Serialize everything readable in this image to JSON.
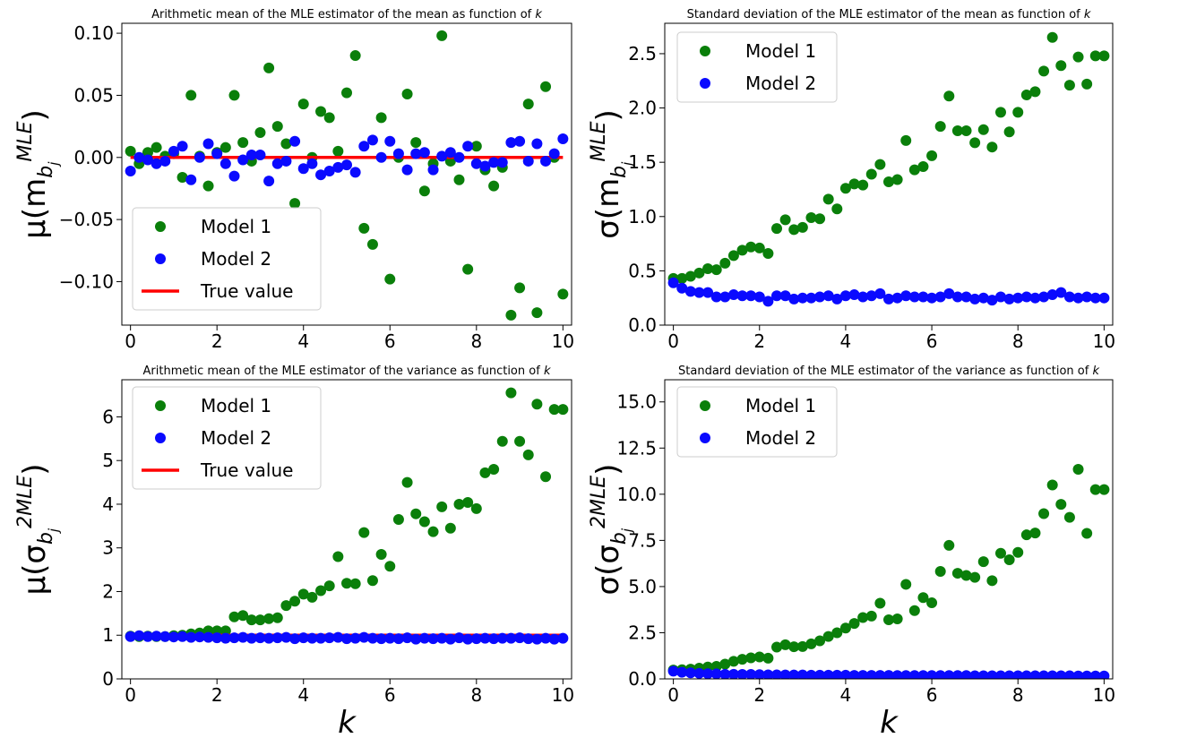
{
  "colors": {
    "model1": "#0a7f0a",
    "model2": "#0a0aff",
    "true_value": "#ff0000"
  },
  "chart_data": [
    {
      "type": "scatter",
      "title": "Arithmetic mean of the MLE estimator of the mean as function of",
      "title_var": "k",
      "ylabel_prefix": "μ(m",
      "ylabel_sub": "b",
      "ylabel_subsub": "j",
      "ylabel_sup": "MLE",
      "ylabel_suffix": ")",
      "xlabel": "",
      "xlim": [
        -0.2,
        10.2
      ],
      "ylim": [
        -0.135,
        0.108
      ],
      "xticks": [
        0,
        2,
        4,
        6,
        8,
        10
      ],
      "xtick_labels": [
        "0",
        "2",
        "4",
        "6",
        "8",
        "10"
      ],
      "yticks": [
        -0.1,
        -0.05,
        0.0,
        0.05,
        0.1
      ],
      "ytick_labels": [
        "−0.10",
        "−0.05",
        "0.00",
        "0.05",
        "0.10"
      ],
      "legend": {
        "position": "lower-left",
        "entries": [
          "Model 1",
          "Model 2",
          "True value"
        ]
      },
      "x": [
        0,
        0.2,
        0.4,
        0.6,
        0.8,
        1.0,
        1.2,
        1.4,
        1.6,
        1.8,
        2.0,
        2.2,
        2.4,
        2.6,
        2.8,
        3.0,
        3.2,
        3.4,
        3.6,
        3.8,
        4.0,
        4.2,
        4.4,
        4.6,
        4.8,
        5.0,
        5.2,
        5.4,
        5.6,
        5.8,
        6.0,
        6.2,
        6.4,
        6.6,
        6.8,
        7.0,
        7.2,
        7.4,
        7.6,
        7.8,
        8.0,
        8.2,
        8.4,
        8.6,
        8.8,
        9.0,
        9.2,
        9.4,
        9.6,
        9.8,
        10.0
      ],
      "series": [
        {
          "name": "Model 1",
          "marker": "dot",
          "values": [
            0.005,
            -0.005,
            0.004,
            0.008,
            0.001,
            0.003,
            -0.016,
            0.05,
            0.001,
            -0.023,
            0.004,
            0.008,
            0.05,
            0.012,
            -0.003,
            0.02,
            0.072,
            0.025,
            0.011,
            -0.037,
            0.043,
            0.0,
            0.037,
            0.032,
            0.005,
            0.052,
            0.082,
            -0.057,
            -0.07,
            0.032,
            -0.098,
            0.0,
            0.051,
            0.012,
            -0.027,
            -0.005,
            0.098,
            -0.003,
            -0.018,
            -0.09,
            0.009,
            -0.01,
            -0.023,
            -0.008,
            -0.127,
            -0.105,
            0.043,
            -0.125,
            0.057,
            0.0,
            -0.11
          ]
        },
        {
          "name": "Model 2",
          "marker": "dot",
          "values": [
            -0.011,
            0.0,
            -0.002,
            -0.005,
            -0.003,
            0.005,
            0.009,
            -0.018,
            0.0,
            0.011,
            0.003,
            -0.005,
            -0.015,
            -0.002,
            0.002,
            0.002,
            -0.019,
            -0.005,
            -0.003,
            0.013,
            -0.009,
            -0.005,
            -0.014,
            -0.011,
            -0.008,
            -0.006,
            -0.012,
            0.009,
            0.014,
            0.0,
            0.013,
            0.003,
            -0.01,
            0.003,
            0.004,
            -0.01,
            0.001,
            0.004,
            0.0,
            0.009,
            -0.005,
            -0.007,
            -0.004,
            -0.004,
            0.012,
            0.013,
            -0.003,
            0.011,
            -0.003,
            0.003,
            0.015
          ]
        },
        {
          "name": "True value",
          "marker": "line",
          "values": [
            0,
            0
          ]
        }
      ]
    },
    {
      "type": "scatter",
      "title": "Standard deviation of the MLE estimator of the mean as function of",
      "title_var": "k",
      "ylabel_prefix": "σ(m",
      "ylabel_sub": "b",
      "ylabel_subsub": "j",
      "ylabel_sup": "MLE",
      "ylabel_suffix": ")",
      "xlabel": "",
      "xlim": [
        -0.2,
        10.2
      ],
      "ylim": [
        0,
        2.78
      ],
      "xticks": [
        0,
        2,
        4,
        6,
        8,
        10
      ],
      "xtick_labels": [
        "0",
        "2",
        "4",
        "6",
        "8",
        "10"
      ],
      "yticks": [
        0.0,
        0.5,
        1.0,
        1.5,
        2.0,
        2.5
      ],
      "ytick_labels": [
        "0.0",
        "0.5",
        "1.0",
        "1.5",
        "2.0",
        "2.5"
      ],
      "legend": {
        "position": "upper-left",
        "entries": [
          "Model 1",
          "Model 2"
        ]
      },
      "x": [
        0,
        0.2,
        0.4,
        0.6,
        0.8,
        1.0,
        1.2,
        1.4,
        1.6,
        1.8,
        2.0,
        2.2,
        2.4,
        2.6,
        2.8,
        3.0,
        3.2,
        3.4,
        3.6,
        3.8,
        4.0,
        4.2,
        4.4,
        4.6,
        4.8,
        5.0,
        5.2,
        5.4,
        5.6,
        5.8,
        6.0,
        6.2,
        6.4,
        6.6,
        6.8,
        7.0,
        7.2,
        7.4,
        7.6,
        7.8,
        8.0,
        8.2,
        8.4,
        8.6,
        8.8,
        9.0,
        9.2,
        9.4,
        9.6,
        9.8,
        10.0
      ],
      "series": [
        {
          "name": "Model 1",
          "marker": "dot",
          "values": [
            0.43,
            0.43,
            0.45,
            0.48,
            0.52,
            0.51,
            0.57,
            0.64,
            0.69,
            0.72,
            0.71,
            0.66,
            0.89,
            0.97,
            0.88,
            0.9,
            0.99,
            0.98,
            1.16,
            1.07,
            1.26,
            1.3,
            1.29,
            1.39,
            1.48,
            1.32,
            1.34,
            1.7,
            1.43,
            1.46,
            1.56,
            1.83,
            2.11,
            1.79,
            1.79,
            1.68,
            1.8,
            1.64,
            1.96,
            1.78,
            1.96,
            2.12,
            2.15,
            2.34,
            2.65,
            2.39,
            2.21,
            2.47,
            2.22,
            2.48,
            2.48
          ]
        },
        {
          "name": "Model 2",
          "marker": "dot",
          "values": [
            0.39,
            0.34,
            0.31,
            0.3,
            0.3,
            0.26,
            0.26,
            0.28,
            0.27,
            0.27,
            0.26,
            0.22,
            0.27,
            0.27,
            0.24,
            0.25,
            0.25,
            0.26,
            0.27,
            0.24,
            0.27,
            0.28,
            0.26,
            0.27,
            0.29,
            0.24,
            0.25,
            0.27,
            0.26,
            0.26,
            0.25,
            0.26,
            0.29,
            0.26,
            0.26,
            0.24,
            0.25,
            0.23,
            0.26,
            0.24,
            0.25,
            0.26,
            0.25,
            0.26,
            0.28,
            0.3,
            0.26,
            0.25,
            0.26,
            0.25,
            0.25
          ]
        }
      ]
    },
    {
      "type": "scatter",
      "title": "Arithmetic mean of the MLE estimator of the variance as function of",
      "title_var": "k",
      "ylabel_prefix": "μ(σ",
      "ylabel_sub": "b",
      "ylabel_subsub": "j",
      "ylabel_sup": "2MLE",
      "ylabel_suffix": ")",
      "xlabel": "k",
      "xlim": [
        -0.2,
        10.2
      ],
      "ylim": [
        0,
        6.85
      ],
      "xticks": [
        0,
        2,
        4,
        6,
        8,
        10
      ],
      "xtick_labels": [
        "0",
        "2",
        "4",
        "6",
        "8",
        "10"
      ],
      "yticks": [
        0,
        1,
        2,
        3,
        4,
        5,
        6
      ],
      "ytick_labels": [
        "0",
        "1",
        "2",
        "3",
        "4",
        "5",
        "6"
      ],
      "legend": {
        "position": "upper-left",
        "entries": [
          "Model 1",
          "Model 2",
          "True value"
        ]
      },
      "x": [
        0,
        0.2,
        0.4,
        0.6,
        0.8,
        1.0,
        1.2,
        1.4,
        1.6,
        1.8,
        2.0,
        2.2,
        2.4,
        2.6,
        2.8,
        3.0,
        3.2,
        3.4,
        3.6,
        3.8,
        4.0,
        4.2,
        4.4,
        4.6,
        4.8,
        5.0,
        5.2,
        5.4,
        5.6,
        5.8,
        6.0,
        6.2,
        6.4,
        6.6,
        6.8,
        7.0,
        7.2,
        7.4,
        7.6,
        7.8,
        8.0,
        8.2,
        8.4,
        8.6,
        8.8,
        9.0,
        9.2,
        9.4,
        9.6,
        9.8,
        10.0
      ],
      "series": [
        {
          "name": "Model 1",
          "marker": "dot",
          "values": [
            0.98,
            0.97,
            0.98,
            0.97,
            0.97,
            0.99,
            1.0,
            1.03,
            1.05,
            1.1,
            1.1,
            1.1,
            1.42,
            1.45,
            1.35,
            1.35,
            1.38,
            1.4,
            1.68,
            1.78,
            1.94,
            1.87,
            2.02,
            2.13,
            2.8,
            2.19,
            2.18,
            3.35,
            2.25,
            2.85,
            2.58,
            3.65,
            4.5,
            3.78,
            3.6,
            3.37,
            3.94,
            3.45,
            4.0,
            4.04,
            3.9,
            4.72,
            4.8,
            5.44,
            6.55,
            5.44,
            5.13,
            6.29,
            4.63,
            6.17,
            6.17
          ]
        },
        {
          "name": "Model 2",
          "marker": "dot",
          "values": [
            0.97,
            0.99,
            0.97,
            0.98,
            0.97,
            0.96,
            0.97,
            0.95,
            0.96,
            0.95,
            0.94,
            0.93,
            0.94,
            0.95,
            0.93,
            0.94,
            0.93,
            0.94,
            0.95,
            0.92,
            0.94,
            0.93,
            0.93,
            0.94,
            0.95,
            0.92,
            0.93,
            0.95,
            0.93,
            0.92,
            0.93,
            0.92,
            0.94,
            0.91,
            0.93,
            0.92,
            0.93,
            0.91,
            0.94,
            0.91,
            0.92,
            0.93,
            0.92,
            0.93,
            0.93,
            0.94,
            0.92,
            0.91,
            0.93,
            0.91,
            0.93
          ]
        },
        {
          "name": "True value",
          "marker": "line",
          "values": [
            1,
            1
          ]
        }
      ]
    },
    {
      "type": "scatter",
      "title": "Standard deviation of the MLE estimator of the variance as function of",
      "title_var": "k",
      "ylabel_prefix": "σ(σ",
      "ylabel_sub": "b",
      "ylabel_subsub": "j",
      "ylabel_sup": "2MLE",
      "ylabel_suffix": ")",
      "xlabel": "k",
      "xlim": [
        -0.2,
        10.2
      ],
      "ylim": [
        0,
        16.2
      ],
      "xticks": [
        0,
        2,
        4,
        6,
        8,
        10
      ],
      "xtick_labels": [
        "0",
        "2",
        "4",
        "6",
        "8",
        "10"
      ],
      "yticks": [
        0.0,
        2.5,
        5.0,
        7.5,
        10.0,
        12.5,
        15.0
      ],
      "ytick_labels": [
        "0.0",
        "2.5",
        "5.0",
        "7.5",
        "10.0",
        "12.5",
        "15.0"
      ],
      "legend": {
        "position": "upper-left",
        "entries": [
          "Model 1",
          "Model 2"
        ]
      },
      "x": [
        0,
        0.2,
        0.4,
        0.6,
        0.8,
        1.0,
        1.2,
        1.4,
        1.6,
        1.8,
        2.0,
        2.2,
        2.4,
        2.6,
        2.8,
        3.0,
        3.2,
        3.4,
        3.6,
        3.8,
        4.0,
        4.2,
        4.4,
        4.6,
        4.8,
        5.0,
        5.2,
        5.4,
        5.6,
        5.8,
        6.0,
        6.2,
        6.4,
        6.6,
        6.8,
        7.0,
        7.2,
        7.4,
        7.6,
        7.8,
        8.0,
        8.2,
        8.4,
        8.6,
        8.8,
        9.0,
        9.2,
        9.4,
        9.6,
        9.8,
        10.0
      ],
      "series": [
        {
          "name": "Model 1",
          "marker": "dot",
          "values": [
            0.48,
            0.5,
            0.53,
            0.58,
            0.64,
            0.68,
            0.8,
            0.95,
            1.06,
            1.14,
            1.19,
            1.12,
            1.72,
            1.85,
            1.74,
            1.75,
            1.9,
            2.06,
            2.3,
            2.5,
            2.75,
            3.0,
            3.32,
            3.4,
            4.1,
            3.2,
            3.25,
            5.12,
            3.7,
            4.4,
            4.12,
            5.82,
            7.23,
            5.72,
            5.6,
            5.5,
            6.35,
            5.32,
            6.8,
            6.45,
            6.85,
            7.8,
            7.9,
            8.95,
            10.5,
            9.45,
            8.75,
            11.35,
            7.88,
            10.25,
            10.25
          ]
        },
        {
          "name": "Model 2",
          "marker": "dot",
          "values": [
            0.42,
            0.36,
            0.33,
            0.3,
            0.28,
            0.27,
            0.25,
            0.25,
            0.24,
            0.24,
            0.23,
            0.22,
            0.22,
            0.21,
            0.21,
            0.21,
            0.2,
            0.2,
            0.2,
            0.2,
            0.2,
            0.19,
            0.19,
            0.19,
            0.19,
            0.19,
            0.18,
            0.18,
            0.18,
            0.18,
            0.18,
            0.18,
            0.18,
            0.18,
            0.18,
            0.17,
            0.17,
            0.17,
            0.17,
            0.17,
            0.17,
            0.17,
            0.17,
            0.17,
            0.17,
            0.17,
            0.17,
            0.16,
            0.16,
            0.16,
            0.16
          ]
        }
      ]
    }
  ]
}
